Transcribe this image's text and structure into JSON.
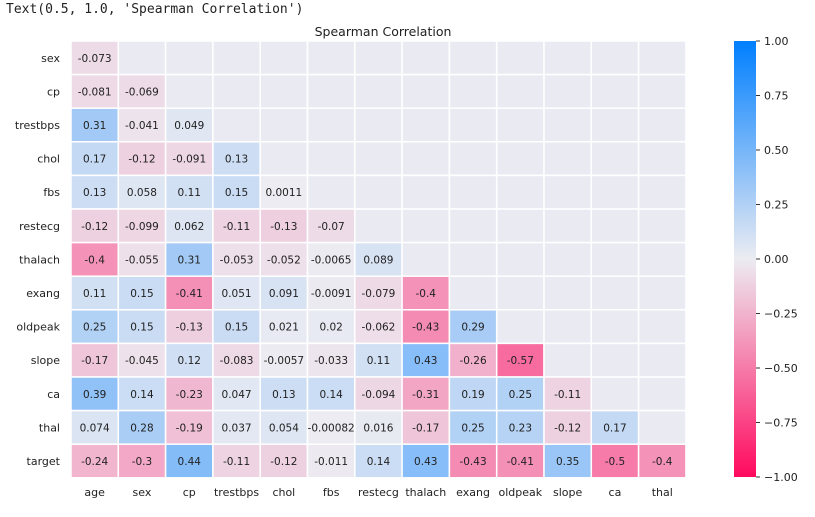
{
  "output_repr": "Text(0.5, 1.0, 'Spearman Correlation')",
  "chart_data": {
    "type": "heatmap",
    "title": "Spearman Correlation",
    "row_labels": [
      "sex",
      "cp",
      "trestbps",
      "chol",
      "fbs",
      "restecg",
      "thalach",
      "exang",
      "oldpeak",
      "slope",
      "ca",
      "thal",
      "target"
    ],
    "col_labels": [
      "age",
      "sex",
      "cp",
      "trestbps",
      "chol",
      "fbs",
      "restecg",
      "thalach",
      "exang",
      "oldpeak",
      "slope",
      "ca",
      "thal"
    ],
    "values": [
      [
        "-0.073",
        null,
        null,
        null,
        null,
        null,
        null,
        null,
        null,
        null,
        null,
        null,
        null
      ],
      [
        "-0.081",
        "-0.069",
        null,
        null,
        null,
        null,
        null,
        null,
        null,
        null,
        null,
        null,
        null
      ],
      [
        "0.31",
        "-0.041",
        "0.049",
        null,
        null,
        null,
        null,
        null,
        null,
        null,
        null,
        null,
        null
      ],
      [
        "0.17",
        "-0.12",
        "-0.091",
        "0.13",
        null,
        null,
        null,
        null,
        null,
        null,
        null,
        null,
        null
      ],
      [
        "0.13",
        "0.058",
        "0.11",
        "0.15",
        "0.0011",
        null,
        null,
        null,
        null,
        null,
        null,
        null,
        null
      ],
      [
        "-0.12",
        "-0.099",
        "0.062",
        "-0.11",
        "-0.13",
        "-0.07",
        null,
        null,
        null,
        null,
        null,
        null,
        null
      ],
      [
        "-0.4",
        "-0.055",
        "0.31",
        "-0.053",
        "-0.052",
        "-0.0065",
        "0.089",
        null,
        null,
        null,
        null,
        null,
        null
      ],
      [
        "0.11",
        "0.15",
        "-0.41",
        "0.051",
        "0.091",
        "-0.0091",
        "-0.079",
        "-0.4",
        null,
        null,
        null,
        null,
        null
      ],
      [
        "0.25",
        "0.15",
        "-0.13",
        "0.15",
        "0.021",
        "0.02",
        "-0.062",
        "-0.43",
        "0.29",
        null,
        null,
        null,
        null
      ],
      [
        "-0.17",
        "-0.045",
        "0.12",
        "-0.083",
        "-0.0057",
        "-0.033",
        "0.11",
        "0.43",
        "-0.26",
        "-0.57",
        null,
        null,
        null
      ],
      [
        "0.39",
        "0.14",
        "-0.23",
        "0.047",
        "0.13",
        "0.14",
        "-0.094",
        "-0.31",
        "0.19",
        "0.25",
        "-0.11",
        null,
        null
      ],
      [
        "0.074",
        "0.28",
        "-0.19",
        "0.037",
        "0.054",
        "-0.00082",
        "0.016",
        "-0.17",
        "0.25",
        "0.23",
        "-0.12",
        "0.17",
        null
      ],
      [
        "-0.24",
        "-0.3",
        "0.44",
        "-0.11",
        "-0.12",
        "-0.011",
        "0.14",
        "0.43",
        "-0.43",
        "-0.41",
        "0.35",
        "-0.5",
        "-0.4"
      ]
    ],
    "color_range": [
      -1.0,
      1.0
    ],
    "colorbar_ticks": [
      "1.00",
      "0.75",
      "0.50",
      "0.25",
      "0.00",
      "−0.25",
      "−0.50",
      "−0.75",
      "−1.00"
    ],
    "colors": {
      "positive": "#007FFF",
      "center": "#ECECF2",
      "negative": "#FF0A5E",
      "empty_cell": "#EAEAF2",
      "text": "#222222"
    },
    "grid": false
  }
}
